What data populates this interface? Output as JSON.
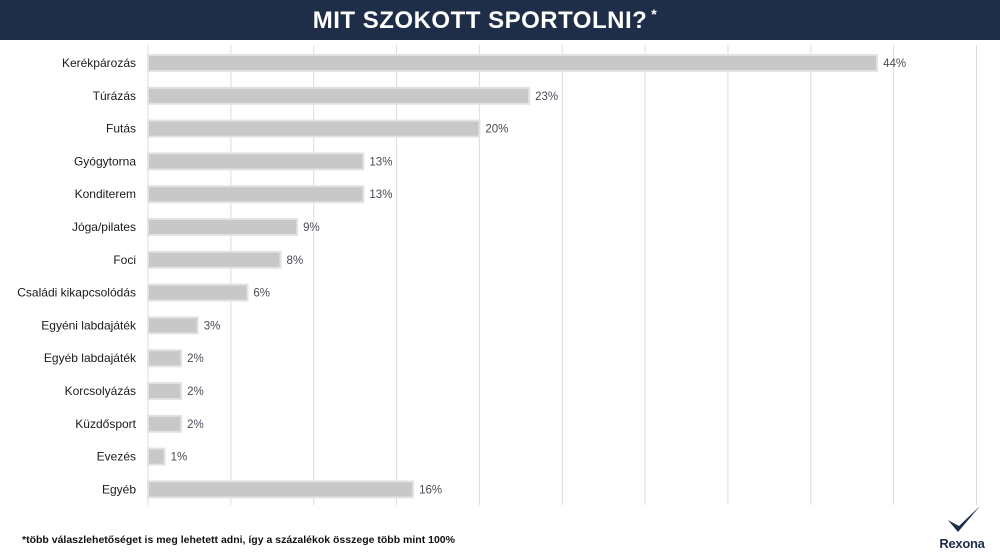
{
  "header": {
    "title": "MIT SZOKOTT SPORTOLNI?",
    "title_mark": "*"
  },
  "footnote": "*több válaszlehetőséget is meg lehetett adni, így a százalékok összege több mint 100%",
  "logo": {
    "text": "Rexona",
    "icon": "checkmark-icon",
    "color": "#1e2d48"
  },
  "colors": {
    "header_bg": "#1e2d48",
    "bar_fill": "#c8c8c8",
    "bar_edge": "#e2e2e2",
    "grid": "#dcdcdc",
    "value_text": "#4a4a58"
  },
  "chart_data": {
    "type": "bar",
    "orientation": "horizontal",
    "title": "MIT SZOKOTT SPORTOLNI?",
    "categories": [
      "Kerékpározás",
      "Túrázás",
      "Futás",
      "Gyógytorna",
      "Konditerem",
      "Jóga/pilates",
      "Foci",
      "Családi kikapcsolódás",
      "Egyéni labdajáték",
      "Egyéb labdajáték",
      "Korcsolyázás",
      "Küzdősport",
      "Evezés",
      "Egyéb"
    ],
    "values": [
      44,
      23,
      20,
      13,
      13,
      9,
      8,
      6,
      3,
      2,
      2,
      2,
      1,
      16
    ],
    "value_labels": [
      "44%",
      "23%",
      "20%",
      "13%",
      "13%",
      "9%",
      "8%",
      "6%",
      "3%",
      "2%",
      "2%",
      "2%",
      "1%",
      "16%"
    ],
    "unit": "%",
    "xlim": [
      0,
      50
    ],
    "grid": true,
    "legend": "none"
  }
}
